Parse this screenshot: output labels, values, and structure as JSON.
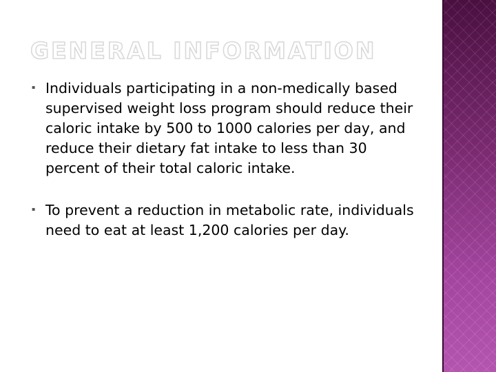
{
  "slide": {
    "title": "GENERAL INFORMATION",
    "bullets": [
      {
        "text": "Individuals participating in a non-medically based supervised weight loss program should reduce their caloric intake by 500 to 1000 calories per day, and reduce their dietary fat intake to less than 30 percent of their total caloric intake."
      },
      {
        "text": "To prevent a reduction in metabolic rate, individuals need to eat at least 1,200 calories per day."
      }
    ],
    "bullet_glyph": "▪",
    "colors": {
      "side_panel_dark": "#4a1040",
      "side_panel_light": "#b455b0",
      "title_outline": "#d9d9d9",
      "body_text": "#000000"
    }
  }
}
